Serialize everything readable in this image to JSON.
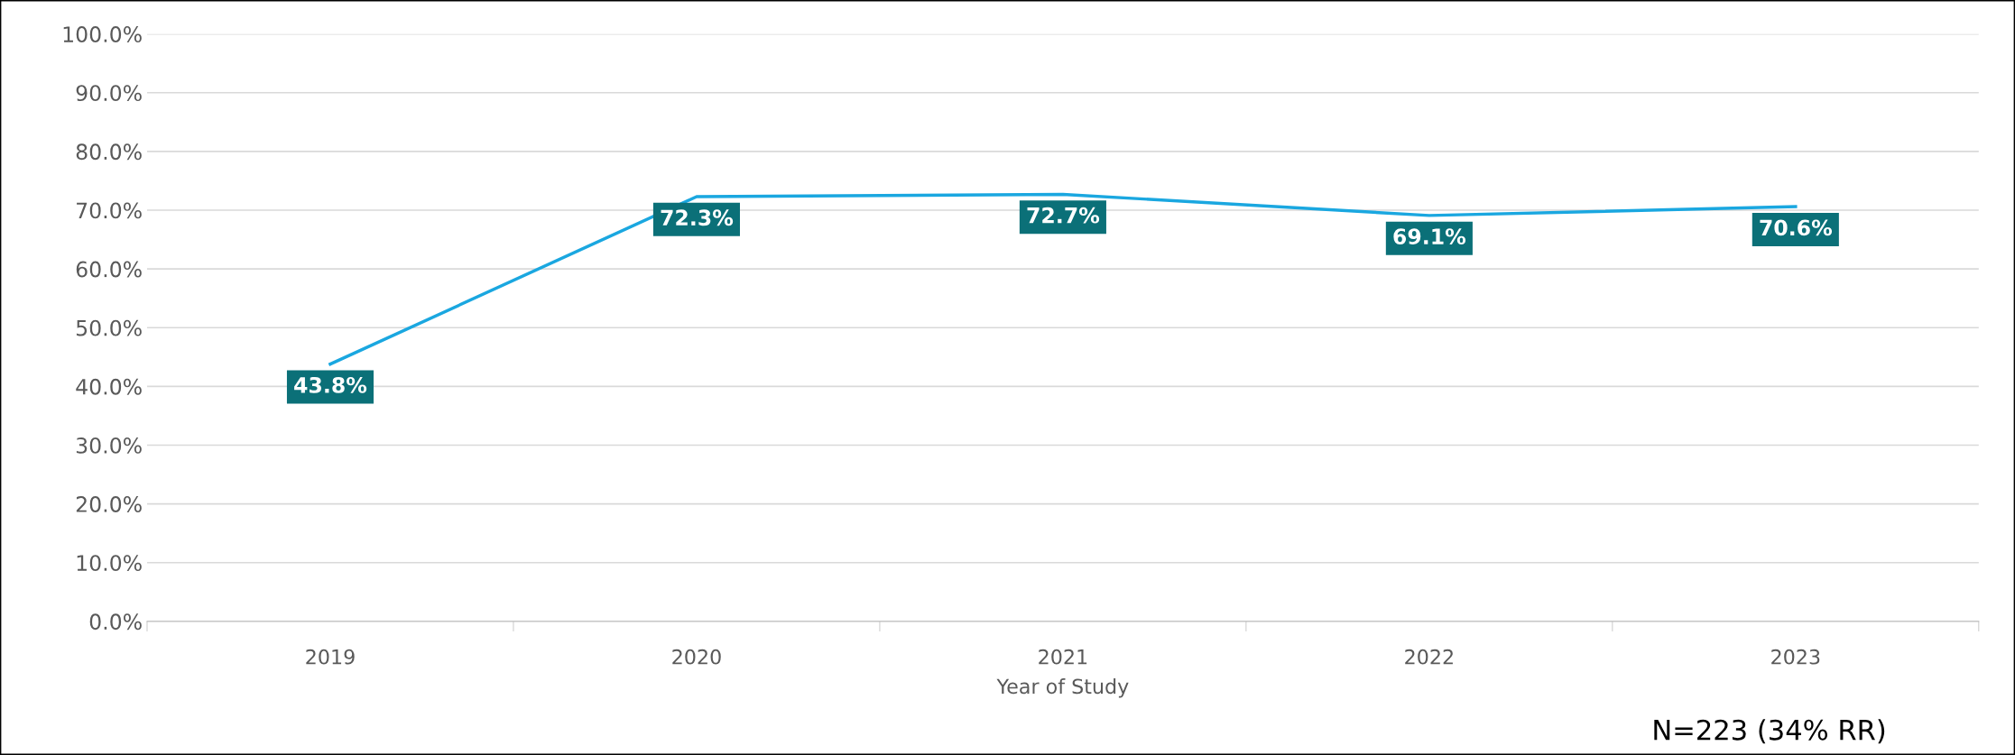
{
  "chart_data": {
    "type": "line",
    "xlabel": "Year of Study",
    "categories": [
      "2019",
      "2020",
      "2021",
      "2022",
      "2023"
    ],
    "series": [
      {
        "color": "#1aa7e0",
        "values": [
          43.8,
          72.3,
          72.7,
          69.1,
          70.6
        ],
        "value_labels": [
          "43.8%",
          "72.3%",
          "72.7%",
          "69.1%",
          "70.6%"
        ]
      }
    ],
    "ylim": [
      0,
      100
    ],
    "yticks": [
      {
        "value": 0,
        "label": "0.0%"
      },
      {
        "value": 10,
        "label": "10.0%"
      },
      {
        "value": 20,
        "label": "20.0%"
      },
      {
        "value": 30,
        "label": "30.0%"
      },
      {
        "value": 40,
        "label": "40.0%"
      },
      {
        "value": 50,
        "label": "50.0%"
      },
      {
        "value": 60,
        "label": "60.0%"
      },
      {
        "value": 70,
        "label": "70.0%"
      },
      {
        "value": 80,
        "label": "80.0%"
      },
      {
        "value": 90,
        "label": "90.0%"
      },
      {
        "value": 100,
        "label": "100.0%"
      }
    ],
    "grid": "y",
    "line_style": "solid",
    "annotations": [
      "N=223 (34% RR)"
    ]
  }
}
